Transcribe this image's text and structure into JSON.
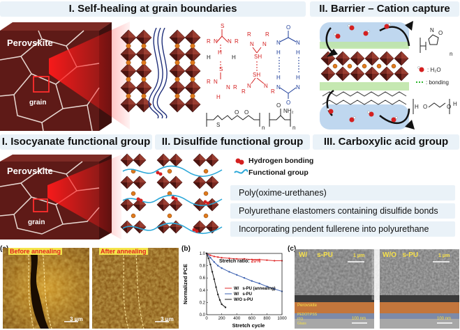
{
  "headers": {
    "h1": "I. Self-healing at grain boundaries",
    "h2": "II. Barrier – Cation capture",
    "h3": "I. Isocyanate functional group",
    "h4": "II. Disulfide functional group",
    "h5": "III. Carboxylic acid group"
  },
  "top_left": {
    "block_label": "Perovskite",
    "grain_label": "grain"
  },
  "chem_labels": {
    "R": "R",
    "N": "N",
    "H": "H",
    "S": "S",
    "SH": "SH",
    "O": "O",
    "NH2": "NH₂",
    "n": "n"
  },
  "barrier": {
    "h2o_legend": ": H₂O",
    "bonding_legend": ": bonding"
  },
  "mid": {
    "block_label": "Perovskite",
    "grain_label": "grain",
    "legend_hbond": "Hydrogen bonding",
    "legend_fg": "Functional group",
    "options": [
      "Poly(oxime-urethanes)",
      "Polyurethane elastomers containing disulfide bonds",
      "Incorporating pendent fullerene into polyurethane"
    ]
  },
  "panel_a": {
    "tag": "(a)",
    "before": "Before annealing",
    "after": "After annealing",
    "scale1": "3 μm",
    "scale2": "3 μm"
  },
  "panel_b": {
    "tag": "(b)"
  },
  "panel_c": {
    "tag": "(c)",
    "left_title": "W/     s-PU",
    "right_title": "W/O   s-PU",
    "scale_top": "1 μm",
    "scale_bottom": "100 nm",
    "layer_perovskite": "Perovskite",
    "layer_pedot": "PEDOT:PSS",
    "layer_ito": "ITO",
    "layer_glass": "Glass"
  },
  "chart_data": {
    "type": "line",
    "xlabel": "Stretch cycle",
    "ylabel": "Normalized PCE",
    "annotation_label": "Stretch ratio: ",
    "annotation_value": "20%",
    "xlim": [
      0,
      1000
    ],
    "ylim": [
      0.0,
      1.0
    ],
    "xticks": [
      0,
      200,
      400,
      600,
      800,
      1000
    ],
    "yticks": [
      0.0,
      0.2,
      0.4,
      0.6,
      0.8,
      1.0
    ],
    "series": [
      {
        "name": "W/   s-PU (annealing)",
        "color": "#e02b2b",
        "x": [
          0,
          50,
          100,
          150,
          200,
          300,
          400,
          500,
          600,
          700,
          800,
          900,
          1000
        ],
        "values": [
          1.0,
          0.97,
          0.95,
          0.94,
          0.93,
          0.92,
          0.91,
          0.91,
          0.9,
          0.9,
          0.89,
          0.88,
          0.88
        ]
      },
      {
        "name": "W/   s-PU",
        "color": "#3a5fb0",
        "x": [
          0,
          50,
          100,
          150,
          200,
          300,
          400,
          500,
          600,
          700,
          800,
          900,
          1000
        ],
        "values": [
          1.0,
          0.93,
          0.86,
          0.8,
          0.76,
          0.7,
          0.65,
          0.6,
          0.55,
          0.51,
          0.46,
          0.42,
          0.38
        ]
      },
      {
        "name": "W/O s-PU",
        "color": "#1a1a1a",
        "x": [
          0,
          25,
          50,
          75,
          100,
          125,
          150,
          175,
          200,
          250
        ],
        "values": [
          1.0,
          0.92,
          0.82,
          0.7,
          0.58,
          0.45,
          0.33,
          0.24,
          0.17,
          0.12
        ]
      }
    ]
  },
  "colors": {
    "header_bg": "#eaf2f8",
    "perovskite": "#6b1f1b",
    "octahedron": "#7a2a22",
    "red_chem": "#d42020",
    "blue_chem": "#1f3f9a",
    "cyan_chain": "#2aa7d8"
  }
}
